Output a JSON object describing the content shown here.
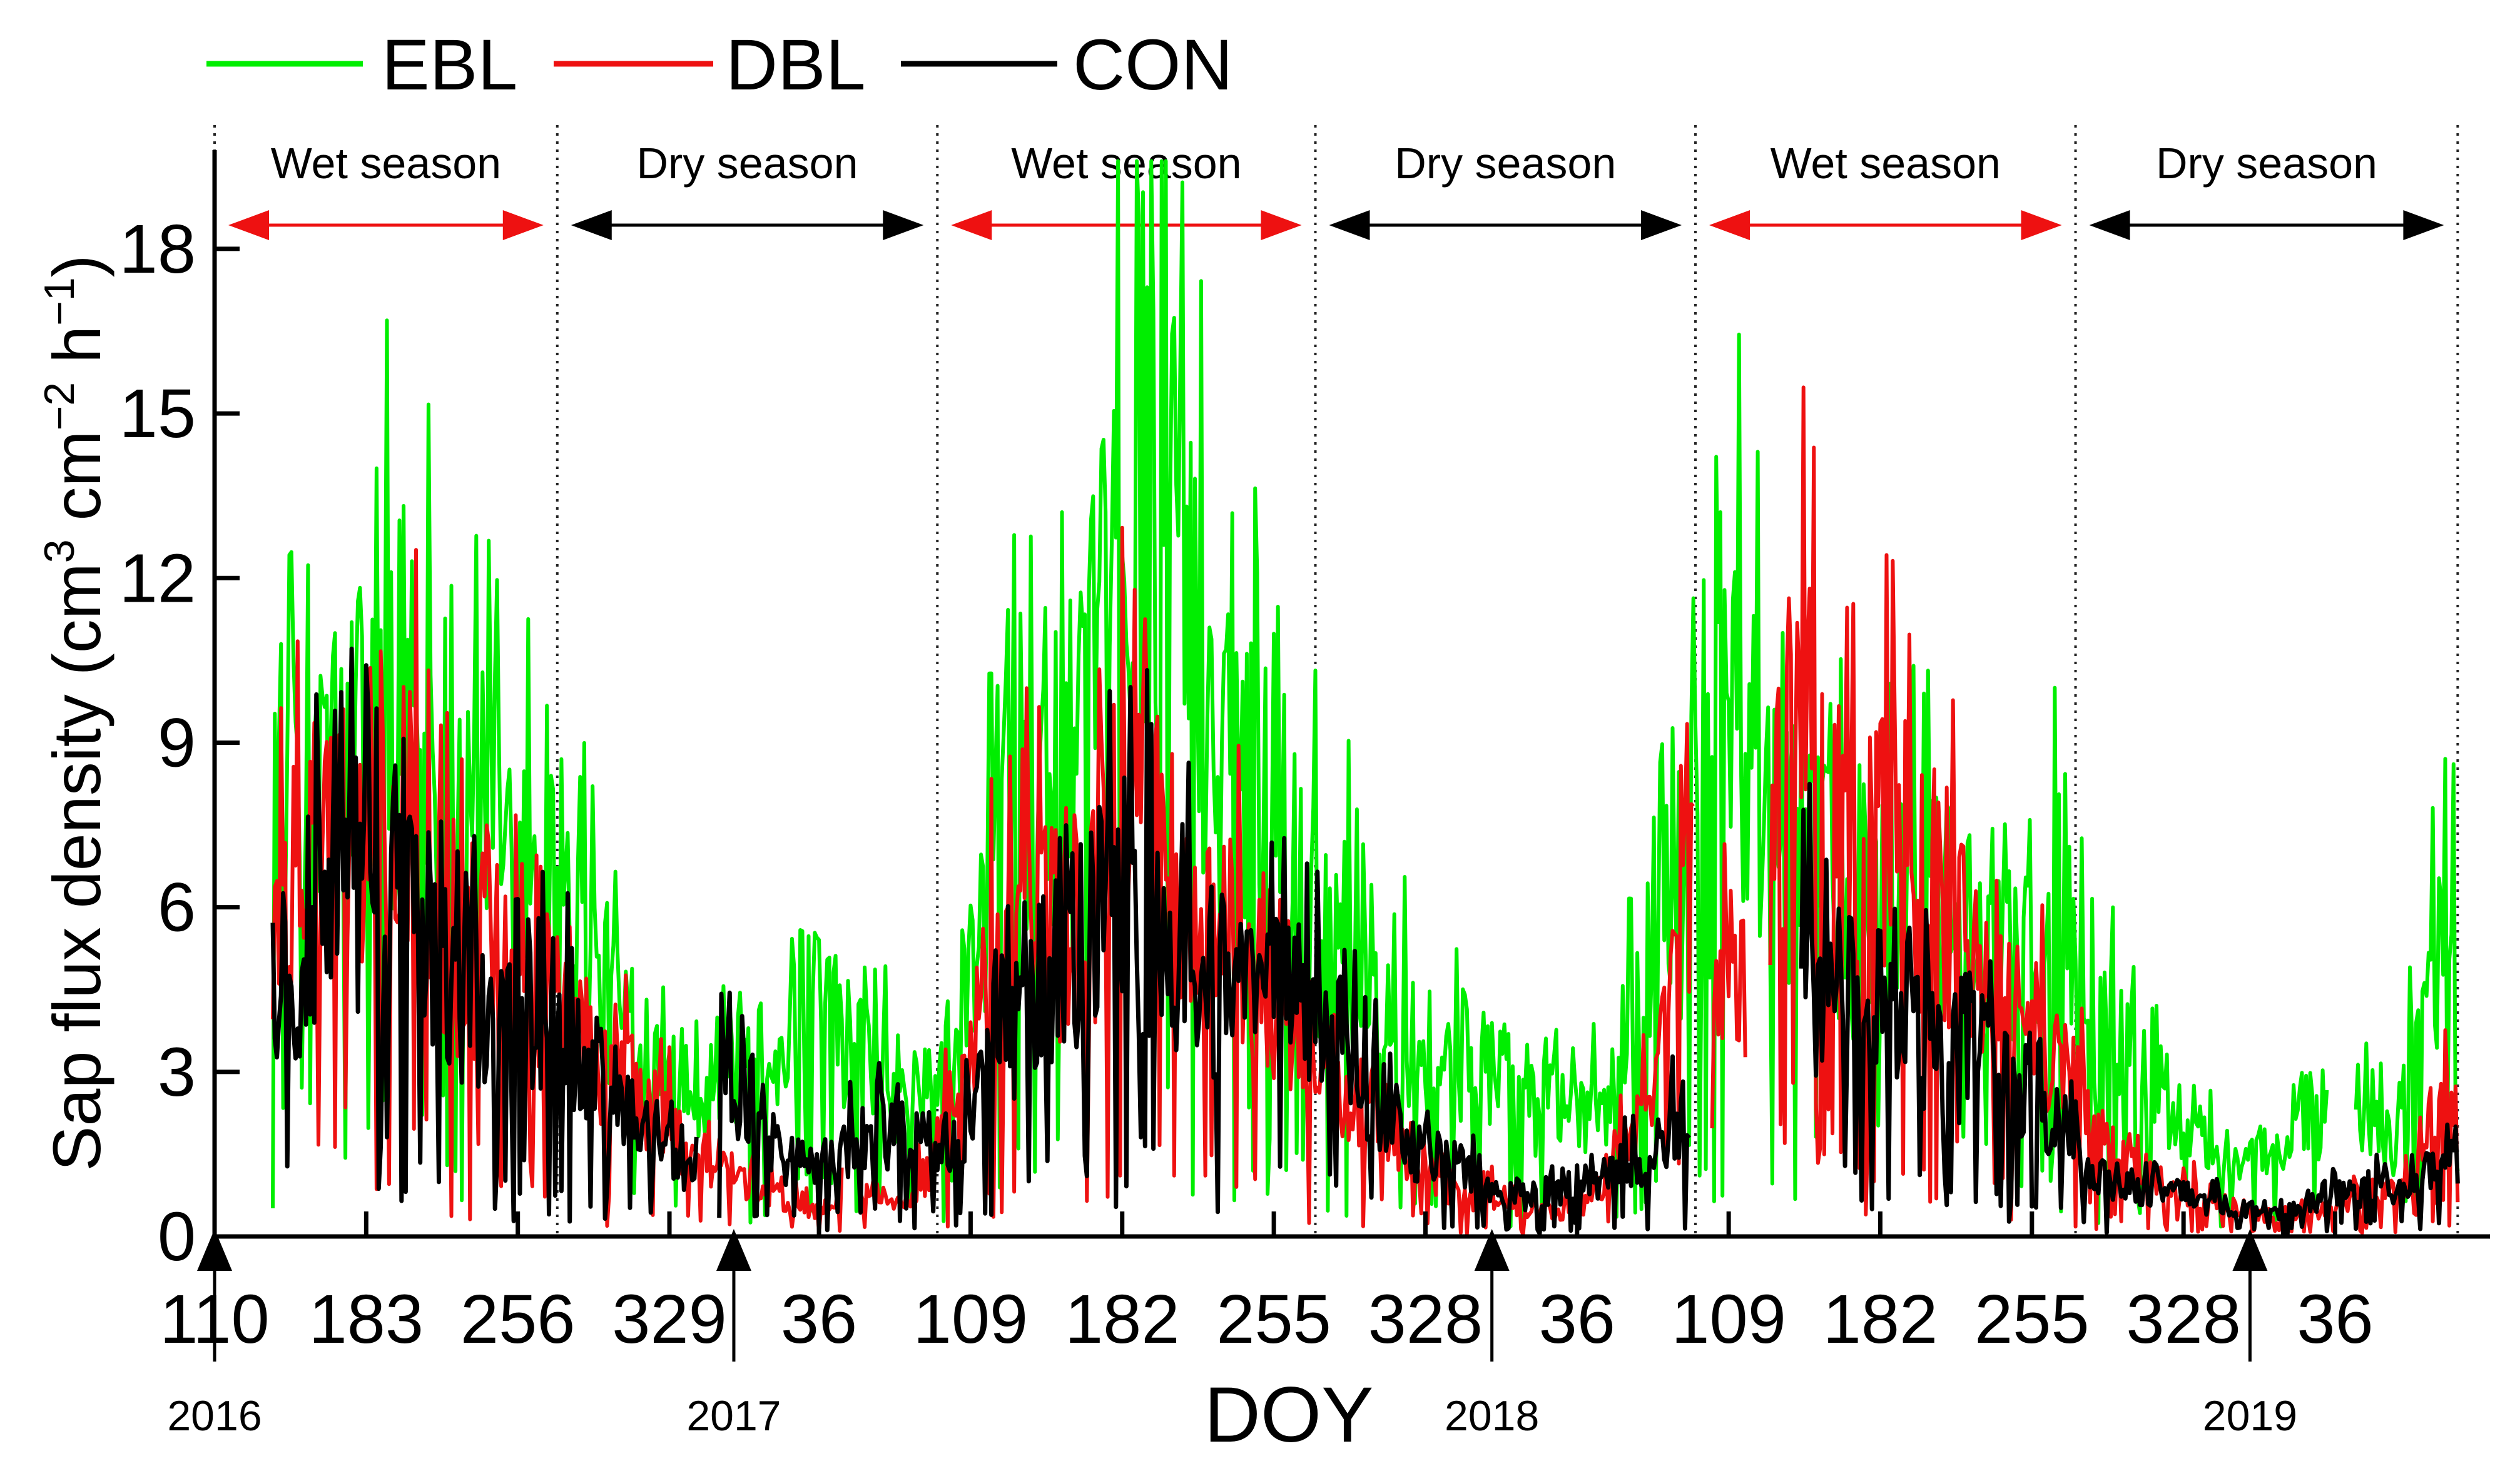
{
  "chart_data": {
    "type": "line",
    "xlabel": "DOY",
    "ylabel_html": "Sap flux density (cm³ cm⁻² h⁻¹)",
    "ylabel": {
      "prefix": "Sap flux density (cm",
      "sup1": "3",
      "mid1": " cm",
      "sup2": "−2",
      "mid2": " h",
      "sup3": "−1",
      "suffix": ")"
    },
    "ylim": [
      0,
      19.8
    ],
    "xlim": [
      110,
      1195
    ],
    "yticks": [
      0,
      3,
      6,
      9,
      12,
      15,
      18
    ],
    "xticks": [
      {
        "pos": 110,
        "label": "110"
      },
      {
        "pos": 183,
        "label": "183"
      },
      {
        "pos": 256,
        "label": "256"
      },
      {
        "pos": 329,
        "label": "329"
      },
      {
        "pos": 401,
        "label": "36"
      },
      {
        "pos": 474,
        "label": "109"
      },
      {
        "pos": 547,
        "label": "182"
      },
      {
        "pos": 620,
        "label": "255"
      },
      {
        "pos": 693,
        "label": "328"
      },
      {
        "pos": 766,
        "label": "36"
      },
      {
        "pos": 839,
        "label": "109"
      },
      {
        "pos": 912,
        "label": "182"
      },
      {
        "pos": 985,
        "label": "255"
      },
      {
        "pos": 1058,
        "label": "328"
      },
      {
        "pos": 1131,
        "label": "36"
      }
    ],
    "year_markers": [
      {
        "pos": 110,
        "label": "2016"
      },
      {
        "pos": 360,
        "label": "2017"
      },
      {
        "pos": 725,
        "label": "2018"
      },
      {
        "pos": 1090,
        "label": "2019"
      }
    ],
    "season_boundaries": [
      110,
      275,
      458,
      640,
      823,
      1006,
      1190
    ],
    "seasons": [
      {
        "label": "Wet season",
        "start": 110,
        "end": 275,
        "type": "wet"
      },
      {
        "label": "Dry season",
        "start": 275,
        "end": 458,
        "type": "dry"
      },
      {
        "label": "Wet season",
        "start": 458,
        "end": 640,
        "type": "wet"
      },
      {
        "label": "Dry season",
        "start": 640,
        "end": 823,
        "type": "dry"
      },
      {
        "label": "Wet season",
        "start": 823,
        "end": 1006,
        "type": "wet"
      },
      {
        "label": "Dry season",
        "start": 1006,
        "end": 1190,
        "type": "dry"
      }
    ],
    "series": [
      {
        "name": "EBL",
        "color": "#00ee00",
        "anchors": [
          [
            138,
            9.5
          ],
          [
            150,
            10.5
          ],
          [
            165,
            9
          ],
          [
            190,
            10.5
          ],
          [
            205,
            11.3
          ],
          [
            225,
            9
          ],
          [
            250,
            8.2
          ],
          [
            268,
            7.5
          ],
          [
            285,
            6
          ],
          [
            300,
            4.8
          ],
          [
            320,
            3.8
          ],
          [
            340,
            3.2
          ],
          [
            360,
            3.5
          ],
          [
            380,
            4
          ],
          [
            400,
            5
          ],
          [
            420,
            3.5
          ],
          [
            440,
            3
          ],
          [
            455,
            2.5
          ],
          [
            470,
            4.5
          ],
          [
            490,
            8
          ],
          [
            500,
            9.5
          ],
          [
            520,
            9
          ],
          [
            540,
            12
          ],
          [
            558,
            16.5
          ],
          [
            570,
            14
          ],
          [
            585,
            11
          ],
          [
            600,
            10
          ],
          [
            620,
            9.2
          ],
          [
            640,
            6.5
          ],
          [
            660,
            5.5
          ],
          [
            680,
            4.5
          ],
          [
            700,
            3.5
          ],
          [
            720,
            3.8
          ],
          [
            740,
            2.5
          ],
          [
            760,
            3
          ],
          [
            780,
            2.5
          ],
          [
            800,
            5
          ],
          [
            815,
            7
          ],
          [
            830,
            8.5
          ],
          [
            845,
            10.5
          ],
          [
            860,
            8
          ],
          [
            880,
            7
          ],
          [
            900,
            6.5
          ],
          [
            920,
            7
          ],
          [
            940,
            6.5
          ],
          [
            960,
            6
          ],
          [
            980,
            6.5
          ],
          [
            1000,
            6.5
          ],
          [
            1015,
            4
          ],
          [
            1035,
            3.5
          ],
          [
            1050,
            2.5
          ],
          [
            1065,
            2.2
          ],
          [
            1080,
            1.2
          ],
          [
            1100,
            1.8
          ],
          [
            1120,
            2.5
          ],
          [
            1140,
            2.5
          ],
          [
            1160,
            1.8
          ],
          [
            1180,
            5.5
          ],
          [
            1190,
            9.5
          ]
        ],
        "gaps": [
          [
            1128,
            1140
          ]
        ]
      },
      {
        "name": "DBL",
        "color": "#ee1111",
        "anchors": [
          [
            138,
            6
          ],
          [
            155,
            7.5
          ],
          [
            170,
            8.5
          ],
          [
            190,
            8
          ],
          [
            205,
            8.5
          ],
          [
            225,
            6
          ],
          [
            250,
            5.5
          ],
          [
            268,
            5.5
          ],
          [
            285,
            4
          ],
          [
            300,
            3.5
          ],
          [
            320,
            2.5
          ],
          [
            340,
            1.8
          ],
          [
            360,
            1.2
          ],
          [
            380,
            0.8
          ],
          [
            400,
            0.5
          ],
          [
            420,
            1
          ],
          [
            440,
            0.6
          ],
          [
            458,
            1.5
          ],
          [
            470,
            3.5
          ],
          [
            490,
            6
          ],
          [
            510,
            6.5
          ],
          [
            530,
            6
          ],
          [
            550,
            9
          ],
          [
            570,
            7
          ],
          [
            590,
            6
          ],
          [
            610,
            5.5
          ],
          [
            630,
            4.5
          ],
          [
            650,
            3
          ],
          [
            670,
            2.5
          ],
          [
            690,
            1.5
          ],
          [
            710,
            0.8
          ],
          [
            730,
            0.8
          ],
          [
            750,
            0.5
          ],
          [
            770,
            0.6
          ],
          [
            790,
            1.8
          ],
          [
            805,
            4
          ],
          [
            815,
            6.5
          ],
          [
            830,
            7
          ],
          [
            845,
            5.5
          ],
          [
            860,
            7.5
          ],
          [
            870,
            11.5
          ],
          [
            885,
            8
          ],
          [
            900,
            7.5
          ],
          [
            915,
            8.5
          ],
          [
            930,
            7.5
          ],
          [
            945,
            6.5
          ],
          [
            960,
            5
          ],
          [
            975,
            4.5
          ],
          [
            990,
            4
          ],
          [
            1005,
            3
          ],
          [
            1020,
            1.8
          ],
          [
            1040,
            1.2
          ],
          [
            1060,
            1
          ],
          [
            1080,
            0.6
          ],
          [
            1100,
            0.4
          ],
          [
            1120,
            0.5
          ],
          [
            1140,
            0.8
          ],
          [
            1160,
            1
          ],
          [
            1175,
            2
          ],
          [
            1190,
            3
          ]
        ],
        "gaps": [
          [
            413,
            420
          ],
          [
            823,
            830
          ],
          [
            848,
            858
          ]
        ]
      },
      {
        "name": "CON",
        "color": "#000000",
        "anchors": [
          [
            138,
            5
          ],
          [
            155,
            6
          ],
          [
            170,
            7
          ],
          [
            190,
            6.5
          ],
          [
            205,
            7.5
          ],
          [
            225,
            5
          ],
          [
            250,
            4.5
          ],
          [
            268,
            4.8
          ],
          [
            285,
            3.8
          ],
          [
            300,
            3
          ],
          [
            320,
            2
          ],
          [
            340,
            1.2
          ],
          [
            355,
            4
          ],
          [
            370,
            2
          ],
          [
            390,
            1.5
          ],
          [
            410,
            1.8
          ],
          [
            430,
            2
          ],
          [
            450,
            2
          ],
          [
            465,
            1.8
          ],
          [
            480,
            3
          ],
          [
            500,
            4.5
          ],
          [
            520,
            6
          ],
          [
            540,
            6.5
          ],
          [
            560,
            6.5
          ],
          [
            580,
            5.5
          ],
          [
            600,
            5
          ],
          [
            620,
            4.8
          ],
          [
            640,
            4.5
          ],
          [
            660,
            3.5
          ],
          [
            680,
            2
          ],
          [
            700,
            1.5
          ],
          [
            720,
            1.2
          ],
          [
            740,
            0.8
          ],
          [
            760,
            1
          ],
          [
            780,
            1.2
          ],
          [
            795,
            1.5
          ],
          [
            810,
            2
          ],
          [
            820,
            2.5
          ]
        ],
        "anchors_b": [
          [
            874,
            5.5
          ],
          [
            890,
            5
          ],
          [
            905,
            5
          ],
          [
            920,
            4.5
          ],
          [
            940,
            4
          ],
          [
            960,
            3.5
          ],
          [
            980,
            3.2
          ],
          [
            995,
            2.5
          ],
          [
            1010,
            1.5
          ],
          [
            1030,
            1
          ],
          [
            1050,
            0.9
          ],
          [
            1070,
            0.7
          ],
          [
            1090,
            0.5
          ],
          [
            1110,
            0.6
          ],
          [
            1130,
            0.8
          ],
          [
            1150,
            1
          ],
          [
            1170,
            1.2
          ],
          [
            1190,
            1.6
          ]
        ],
        "gaps": [
          [
            343,
            352
          ]
        ]
      }
    ],
    "legend_position": "top-left"
  }
}
